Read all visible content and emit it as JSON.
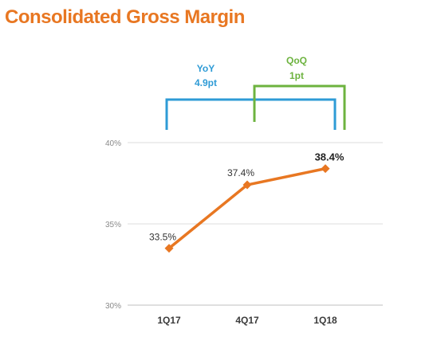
{
  "title": "Consolidated Gross Margin",
  "colors": {
    "title": "#E87722",
    "line": "#E87722",
    "yoy": "#2E9BD6",
    "qoq": "#6DB33F",
    "grid": "#dddddd"
  },
  "annotations": {
    "yoy": {
      "label": "YoY",
      "value": "4.9pt"
    },
    "qoq": {
      "label": "QoQ",
      "value": "1pt"
    }
  },
  "chart_data": {
    "type": "line",
    "title": "Consolidated Gross Margin",
    "categories": [
      "1Q17",
      "4Q17",
      "1Q18"
    ],
    "series": [
      {
        "values": [
          33.5,
          37.4,
          38.4
        ]
      }
    ],
    "data_labels": [
      "33.5%",
      "37.4%",
      "38.4%"
    ],
    "yticks": [
      "30%",
      "35%",
      "40%"
    ],
    "ylim": [
      30,
      40
    ],
    "grid": true,
    "legend": "none"
  }
}
